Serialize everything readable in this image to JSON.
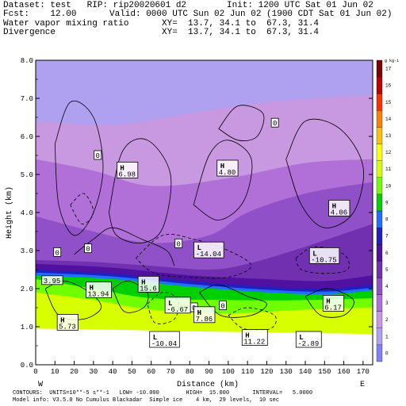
{
  "header": {
    "dataset_line": "Dataset: test   RIP: rip20020601 d2",
    "fcst_line": "Fcst:    12.00",
    "var1_line": "Water vapor mixing ratio",
    "var2_line": "Divergence",
    "init_line": "Init: 1200 UTC Sat 01 Jun 02",
    "valid_line": "Valid: 0000 UTC Sun 02 Jun 02 (1900 CDT Sat 01 Jun 02)",
    "xy1_line": "XY=  13.7, 34.1 to  67.3, 31.4",
    "xy2_line": "XY=  13.7, 34.1 to  67.3, 31.4"
  },
  "footer": {
    "line1": "CONTOURS:  UNITS=10**-5 s**-1   LOW= -10.000        HIGH=  15.000       INTERVAL=   5.0000",
    "line2": "Model info: V3.5.0 No Cumulus Blackadar  Simple ice    4 km,  29 levels,  10 sec"
  },
  "chart_data": {
    "type": "heatmap",
    "xlabel": "Distance (km)",
    "ylabel": "Height (km)",
    "xlim": [
      0,
      175
    ],
    "ylim": [
      0,
      8
    ],
    "x_ticks": [
      0,
      10,
      20,
      30,
      40,
      50,
      60,
      70,
      80,
      90,
      100,
      110,
      120,
      130,
      140,
      150,
      160,
      170
    ],
    "y_ticks": [
      "0.0",
      "1.0",
      "2.0",
      "3.0",
      "4.0",
      "5.0",
      "6.0",
      "7.0",
      "8.0"
    ],
    "y_tick_values": [
      0,
      1,
      2,
      3,
      4,
      5,
      6,
      7,
      8
    ],
    "west_label": "W",
    "east_label": "E",
    "colorbar": {
      "unit": "g kg-1",
      "levels": [
        0,
        1,
        2,
        3,
        4,
        5,
        6,
        7,
        8,
        9,
        10,
        11,
        12,
        13,
        14,
        15,
        16,
        17
      ],
      "colors": [
        "#8080ff",
        "#b0a0f0",
        "#c898e0",
        "#b070d8",
        "#9050c8",
        "#7030b0",
        "#5010a0",
        "#2020c0",
        "#2070ff",
        "#00d000",
        "#70ff00",
        "#d8ff00",
        "#ffff00",
        "#ffc000",
        "#ff8000",
        "#ff3000",
        "#c00000",
        "#800000"
      ]
    },
    "moisture_layers": [
      {
        "name": "band1",
        "color": "#b0a0f0",
        "top": [
          [
            0,
            8.0
          ],
          [
            175,
            8.0
          ]
        ]
      },
      {
        "name": "band2",
        "color": "#c898e0",
        "top": [
          [
            0,
            6.4
          ],
          [
            40,
            6.3
          ],
          [
            80,
            6.6
          ],
          [
            120,
            6.9
          ],
          [
            175,
            7.1
          ]
        ]
      },
      {
        "name": "band3",
        "color": "#b070d8",
        "top": [
          [
            0,
            5.4
          ],
          [
            30,
            5.1
          ],
          [
            60,
            4.7
          ],
          [
            100,
            4.9
          ],
          [
            140,
            5.3
          ],
          [
            175,
            5.4
          ]
        ]
      },
      {
        "name": "band4",
        "color": "#9050c8",
        "top": [
          [
            0,
            3.9
          ],
          [
            30,
            3.5
          ],
          [
            60,
            3.2
          ],
          [
            90,
            3.4
          ],
          [
            110,
            4.0
          ],
          [
            140,
            4.5
          ],
          [
            175,
            4.8
          ]
        ]
      },
      {
        "name": "band5",
        "color": "#7030b0",
        "top": [
          [
            0,
            2.75
          ],
          [
            30,
            2.7
          ],
          [
            60,
            2.6
          ],
          [
            90,
            2.5
          ],
          [
            110,
            2.65
          ],
          [
            140,
            3.1
          ],
          [
            175,
            3.7
          ]
        ]
      },
      {
        "name": "band6",
        "color": "#5010a0",
        "top": [
          [
            0,
            2.65
          ],
          [
            40,
            2.55
          ],
          [
            80,
            2.35
          ],
          [
            120,
            2.25
          ],
          [
            150,
            2.2
          ],
          [
            175,
            2.35
          ]
        ]
      },
      {
        "name": "band7",
        "color": "#2020c0",
        "top": [
          [
            0,
            2.5
          ],
          [
            40,
            2.4
          ],
          [
            80,
            2.2
          ],
          [
            120,
            2.05
          ],
          [
            150,
            2.0
          ],
          [
            175,
            2.1
          ]
        ]
      },
      {
        "name": "band8",
        "color": "#2070ff",
        "top": [
          [
            0,
            2.42
          ],
          [
            40,
            2.32
          ],
          [
            80,
            2.12
          ],
          [
            120,
            1.97
          ],
          [
            150,
            1.92
          ],
          [
            175,
            2.02
          ]
        ]
      },
      {
        "name": "band9",
        "color": "#00d000",
        "top": [
          [
            0,
            2.35
          ],
          [
            40,
            2.25
          ],
          [
            80,
            2.05
          ],
          [
            120,
            1.9
          ],
          [
            150,
            1.85
          ],
          [
            175,
            1.95
          ]
        ]
      },
      {
        "name": "band10",
        "color": "#70ff00",
        "top": [
          [
            0,
            2.25
          ],
          [
            30,
            2.0
          ],
          [
            60,
            1.75
          ],
          [
            100,
            1.7
          ],
          [
            140,
            1.7
          ],
          [
            175,
            1.75
          ]
        ]
      },
      {
        "name": "band11",
        "color": "#d8ff00",
        "top": [
          [
            0,
            1.9
          ],
          [
            30,
            1.7
          ],
          [
            60,
            1.45
          ],
          [
            100,
            1.35
          ],
          [
            140,
            1.45
          ],
          [
            175,
            1.5
          ]
        ]
      }
    ],
    "ground": [
      [
        0,
        0.95
      ],
      [
        40,
        0.92
      ],
      [
        80,
        0.88
      ],
      [
        120,
        0.85
      ],
      [
        160,
        0.82
      ],
      [
        175,
        0.8
      ]
    ],
    "contour_lines": [
      {
        "style": "solid",
        "points": [
          [
            10,
            5.8
          ],
          [
            18,
            6.9
          ],
          [
            30,
            6.5
          ],
          [
            35,
            5.2
          ],
          [
            30,
            4.0
          ],
          [
            20,
            3.4
          ],
          [
            12,
            4.2
          ],
          [
            10,
            5.8
          ]
        ]
      },
      {
        "style": "solid",
        "points": [
          [
            38,
            4.0
          ],
          [
            45,
            5.6
          ],
          [
            58,
            5.9
          ],
          [
            70,
            5.0
          ],
          [
            66,
            3.6
          ],
          [
            55,
            3.2
          ],
          [
            42,
            3.4
          ],
          [
            38,
            4.0
          ]
        ]
      },
      {
        "style": "solid",
        "points": [
          [
            82,
            4.2
          ],
          [
            90,
            5.5
          ],
          [
            100,
            5.9
          ],
          [
            112,
            5.4
          ],
          [
            108,
            4.3
          ],
          [
            95,
            3.8
          ],
          [
            82,
            4.2
          ]
        ]
      },
      {
        "style": "solid",
        "points": [
          [
            95,
            6.2
          ],
          [
            105,
            6.8
          ],
          [
            118,
            6.6
          ],
          [
            115,
            6.0
          ],
          [
            105,
            5.9
          ],
          [
            95,
            6.2
          ]
        ]
      },
      {
        "style": "solid",
        "points": [
          [
            130,
            5.4
          ],
          [
            140,
            6.4
          ],
          [
            158,
            6.2
          ],
          [
            170,
            5.2
          ],
          [
            165,
            4.0
          ],
          [
            150,
            3.6
          ],
          [
            138,
            4.2
          ],
          [
            130,
            5.4
          ]
        ]
      },
      {
        "style": "solid",
        "points": [
          [
            20,
            2.9
          ],
          [
            30,
            3.3
          ],
          [
            40,
            3.6
          ],
          [
            55,
            3.3
          ],
          [
            68,
            3.0
          ],
          [
            72,
            2.6
          ]
        ]
      },
      {
        "style": "solid",
        "points": [
          [
            5,
            2.0
          ],
          [
            15,
            2.2
          ],
          [
            28,
            1.9
          ],
          [
            34,
            1.5
          ],
          [
            25,
            1.2
          ],
          [
            12,
            1.3
          ],
          [
            5,
            2.0
          ]
        ]
      },
      {
        "style": "solid",
        "points": [
          [
            40,
            2.0
          ],
          [
            48,
            2.2
          ],
          [
            58,
            1.9
          ],
          [
            56,
            1.5
          ],
          [
            46,
            1.4
          ],
          [
            40,
            2.0
          ]
        ]
      },
      {
        "style": "solid",
        "points": [
          [
            85,
            1.9
          ],
          [
            95,
            2.1
          ],
          [
            110,
            1.8
          ],
          [
            120,
            1.6
          ],
          [
            112,
            1.3
          ],
          [
            96,
            1.3
          ],
          [
            85,
            1.9
          ]
        ]
      },
      {
        "style": "solid",
        "points": [
          [
            140,
            1.8
          ],
          [
            152,
            2.0
          ],
          [
            165,
            1.7
          ],
          [
            160,
            1.3
          ],
          [
            148,
            1.3
          ],
          [
            140,
            1.8
          ]
        ]
      },
      {
        "style": "dashed",
        "points": [
          [
            52,
            2.8
          ],
          [
            66,
            3.4
          ],
          [
            82,
            3.3
          ],
          [
            100,
            3.0
          ],
          [
            112,
            2.6
          ],
          [
            100,
            2.3
          ],
          [
            80,
            2.3
          ],
          [
            62,
            2.4
          ],
          [
            52,
            2.8
          ]
        ]
      },
      {
        "style": "dashed",
        "points": [
          [
            135,
            2.8
          ],
          [
            145,
            3.1
          ],
          [
            160,
            2.9
          ],
          [
            162,
            2.5
          ],
          [
            150,
            2.4
          ],
          [
            138,
            2.5
          ],
          [
            135,
            2.8
          ]
        ]
      },
      {
        "style": "dashed",
        "points": [
          [
            58,
            1.6
          ],
          [
            66,
            1.9
          ],
          [
            74,
            1.7
          ],
          [
            72,
            1.2
          ],
          [
            62,
            1.1
          ],
          [
            58,
            1.6
          ]
        ]
      },
      {
        "style": "dashed",
        "points": [
          [
            100,
            1.3
          ],
          [
            110,
            1.5
          ],
          [
            124,
            1.3
          ],
          [
            122,
            0.95
          ],
          [
            108,
            0.95
          ],
          [
            100,
            1.3
          ]
        ]
      },
      {
        "style": "dashed",
        "points": [
          [
            18,
            4.2
          ],
          [
            25,
            4.5
          ],
          [
            30,
            4.0
          ],
          [
            24,
            3.7
          ],
          [
            18,
            4.2
          ]
        ]
      }
    ],
    "annotations": [
      {
        "text": "0",
        "x": 32,
        "y": 5.5,
        "box": true
      },
      {
        "text": "0",
        "x": 74,
        "y": 3.18,
        "box": true
      },
      {
        "text": "0",
        "x": 11,
        "y": 2.95,
        "box": true
      },
      {
        "text": "0",
        "x": 27,
        "y": 3.05,
        "box": true
      },
      {
        "text": "0",
        "x": 124,
        "y": 6.35,
        "box": true
      },
      {
        "text": "0",
        "x": 97,
        "y": 1.55,
        "box": true
      },
      {
        "text": "0",
        "x": 82,
        "y": 1.5,
        "box": true
      },
      {
        "text": "H",
        "sub": "6.98",
        "x": 43,
        "y": 4.95
      },
      {
        "text": "H",
        "sub": "4.80",
        "x": 95,
        "y": 5.0
      },
      {
        "text": "H",
        "sub": "4.06",
        "x": 153,
        "y": 3.95
      },
      {
        "text": "L",
        "sub": "-14.04",
        "x": 83,
        "y": 2.85
      },
      {
        "text": "L",
        "sub": "-10.75",
        "x": 143,
        "y": 2.7
      },
      {
        "text": "H",
        "sub": "13.94",
        "x": 27,
        "y": 1.8
      },
      {
        "text": "H",
        "sub": "15.6",
        "x": 54,
        "y": 1.95
      },
      {
        "text": "L",
        "sub": "-6.67",
        "x": 68,
        "y": 1.4
      },
      {
        "text": "H",
        "sub": "7.86",
        "x": 83,
        "y": 1.15
      },
      {
        "text": "H",
        "sub": "6.17",
        "x": 150,
        "y": 1.45
      },
      {
        "text": "H",
        "sub": "5.73",
        "x": 12,
        "y": 0.95
      },
      {
        "text": "L",
        "sub": "-10.04",
        "x": 60,
        "y": 0.5
      },
      {
        "text": "H",
        "sub": "11.22",
        "x": 108,
        "y": 0.55
      },
      {
        "text": "L",
        "sub": "-2.89",
        "x": 136,
        "y": 0.5
      },
      {
        "text": "",
        "sub": "3.95",
        "x": 4,
        "y": 2.15
      }
    ]
  }
}
